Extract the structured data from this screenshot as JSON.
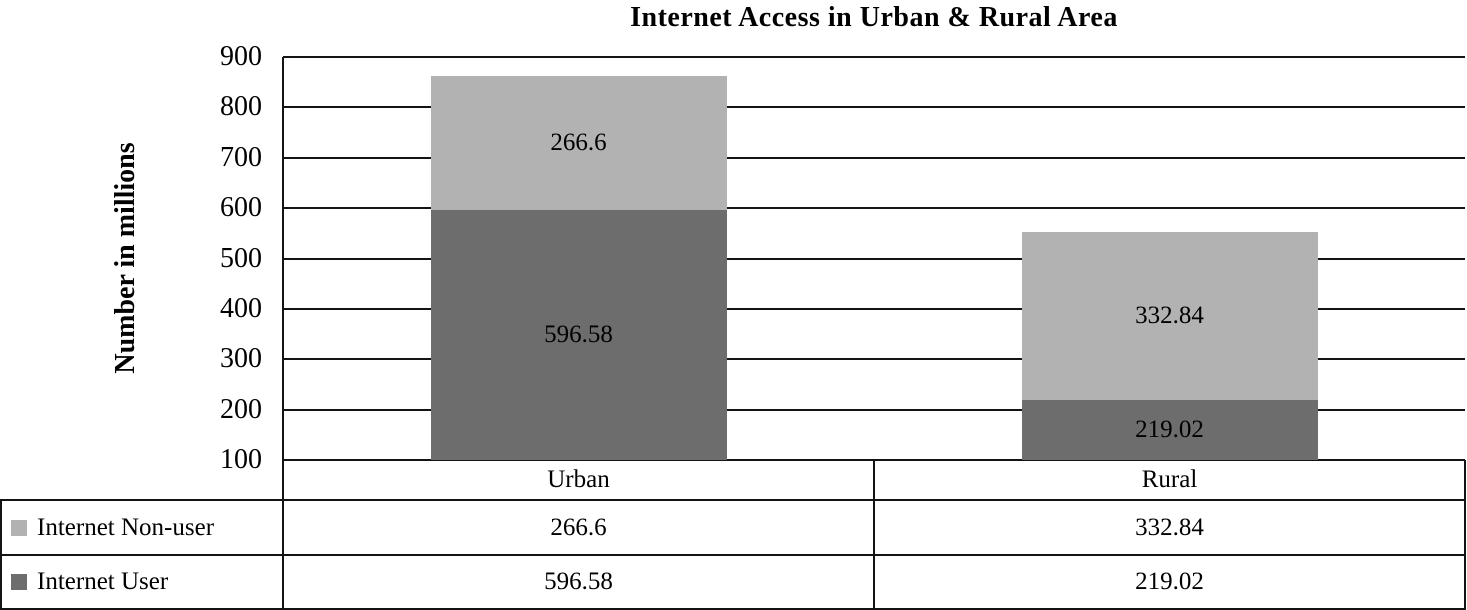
{
  "chart_data": {
    "type": "bar",
    "stacked": true,
    "title": "Internet Access in Urban & Rural Area",
    "ylabel": "Number in millions",
    "xlabel": "",
    "ylim": [
      100,
      900
    ],
    "ytick_step": 100,
    "grid": true,
    "data_labels": true,
    "legend_position": "left-of-data-table",
    "categories": [
      "Urban",
      "Rural"
    ],
    "series": [
      {
        "name": "Internet User",
        "values": [
          596.58,
          219.02
        ],
        "color": "#6d6d6d"
      },
      {
        "name": "Internet Non-user",
        "values": [
          266.6,
          332.84
        ],
        "color": "#b2b2b2"
      }
    ]
  },
  "table": {
    "rows": [
      {
        "label": "Internet Non-user",
        "series_index": 1,
        "values": [
          "266.6",
          "332.84"
        ]
      },
      {
        "label": "Internet User",
        "series_index": 0,
        "values": [
          "596.58",
          "219.02"
        ]
      }
    ]
  }
}
